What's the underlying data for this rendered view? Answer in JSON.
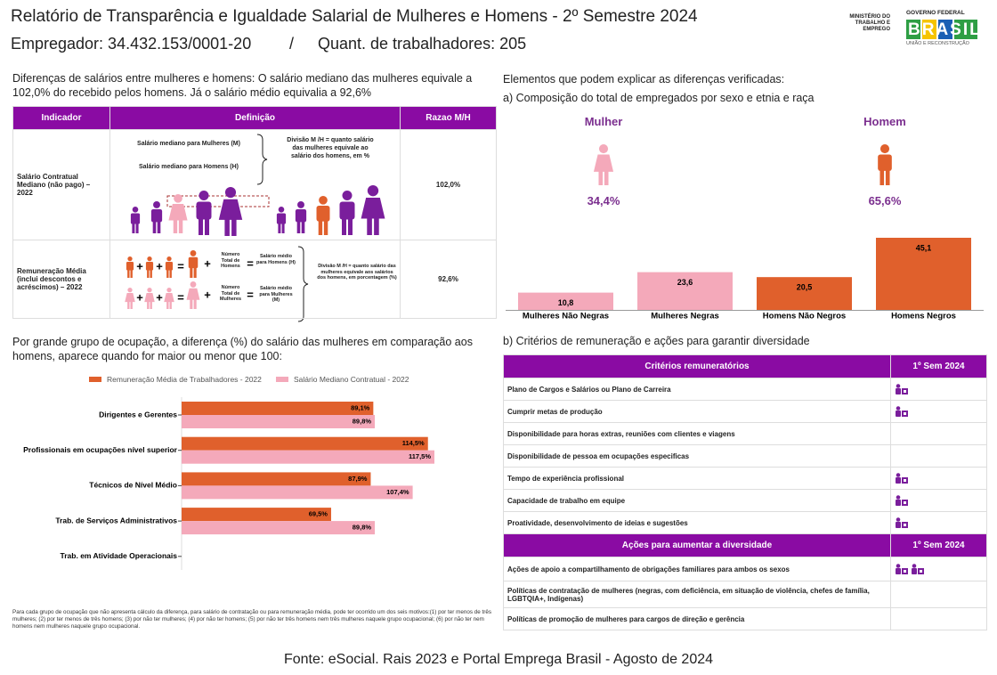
{
  "header": {
    "title": "Relatório de Transparência e Igualdade Salarial de Mulheres e Homens - 2º Semestre 2024",
    "employer": "Empregador: 34.432.153/0001-20",
    "separator": "/",
    "workers": "Quant. de trabalhadores: 205"
  },
  "logos": {
    "ministry": "MINISTÉRIO DO TRABALHO E EMPREGO",
    "government": "GOVERNO FEDERAL",
    "brand": "BRASIL",
    "slogan": "UNIÃO E RECONSTRUÇÃO"
  },
  "intro": "Diferenças de salários entre mulheres e homens: O salário mediano das mulheres equivale a 102,0% do recebido pelos homens. Já o salário médio equivalia a 92,6%",
  "table1": {
    "headers": [
      "Indicador",
      "Definição",
      "Razao M/H"
    ],
    "rows": [
      {
        "indicator": "Salário Contratual Mediano (não pago) – 2022",
        "definition": [
          "Salário mediano para Mulheres (M)",
          "Salário mediano para Homens (H)"
        ],
        "note": "Divisão M /H = quanto salário das mulheres equivale ao salário dos homens, em %",
        "ratio": "102,0%"
      },
      {
        "indicator": "Remuneração Média (inclui descontos e acréscimos) – 2022",
        "definition": [
          "Número Total de Homens",
          "Salário médio para Homens (H)",
          "Número Total de Mulheres",
          "Salário médio para Mulheres (M)"
        ],
        "note": "Divisão M /H = quanto salário das mulheres equivale aos salários dos homens, em porcentagem (%)",
        "ratio": "92,6%"
      }
    ]
  },
  "composition": {
    "heading": "Elementos que podem explicar as diferenças verificadas:",
    "subheading": "a) Composição do total de empregados por sexo e etnia e raça",
    "woman": {
      "label": "Mulher",
      "share": "34,4%"
    },
    "man": {
      "label": "Homem",
      "share": "65,6%"
    }
  },
  "occupation": "Por grande grupo de ocupação, a diferença (%) do salário das mulheres em comparação aos homens, aparece quando for maior ou menor que 100:",
  "chart_data": [
    {
      "type": "bar",
      "categories": [
        "Mulheres Não Negras",
        "Mulheres Negras",
        "Homens Não Negros",
        "Homens Negros"
      ],
      "values": [
        10.8,
        23.6,
        20.5,
        45.1
      ],
      "value_labels": [
        "10,8",
        "23,6",
        "20,5",
        "45,1"
      ],
      "colors": [
        "#f4a9ba",
        "#f4a9ba",
        "#e0602c",
        "#e0602c"
      ]
    },
    {
      "type": "hbar",
      "categories": [
        "Dirigentes e Gerentes",
        "Profissionais em ocupações nível superior",
        "Técnicos de Nível Médio",
        "Trab. de Serviços Administrativos",
        "Trab. em Atividade Operacionais"
      ],
      "series": [
        {
          "name": "Remuneração Média de Trabalhadores - 2022",
          "color": "#e0602c",
          "values": [
            89.1,
            114.5,
            87.9,
            69.5,
            null
          ],
          "value_labels": [
            "89,1%",
            "114,5%",
            "87,9%",
            "69,5%",
            null
          ]
        },
        {
          "name": "Salário Mediano Contratual - 2022",
          "color": "#f4a9ba",
          "values": [
            89.8,
            117.5,
            107.4,
            89.8,
            null
          ],
          "value_labels": [
            "89,8%",
            "117,5%",
            "107,4%",
            "89,8%",
            null
          ]
        }
      ]
    }
  ],
  "footnote": "Para cada grupo de ocupação que não apresenta cálculo da diferença, para salário de contratação ou para remuneração média, pode ter ocorrido um dos seis motivos:(1) por ter menos de três mulheres; (2) por ter menos de três homens; (3) por não ter mulheres; (4) por não ter homens; (5) por não ter três homens nem três mulheres naquele grupo ocupacional; (6) por não ter nem homens nem mulheres naquele grupo ocupacional.",
  "diversity": {
    "heading": "b) Critérios de remuneração e ações para garantir diversidade",
    "criteria": {
      "headers": [
        "Critérios remuneratórios",
        "1º Sem 2024"
      ],
      "rows": [
        {
          "label": "Plano de Cargos e Salários ou Plano de Carreira",
          "icons": 1
        },
        {
          "label": "Cumprir metas de produção",
          "icons": 1
        },
        {
          "label": "Disponibilidade para horas extras, reuniões com clientes e viagens",
          "icons": 0
        },
        {
          "label": "Disponibilidade de pessoa em ocupações especificas",
          "icons": 0
        },
        {
          "label": "Tempo de experiência profissional",
          "icons": 1
        },
        {
          "label": "Capacidade de trabalho em equipe",
          "icons": 1
        },
        {
          "label": "Proatividade, desenvolvimento de ideias e sugestões",
          "icons": 1
        }
      ]
    },
    "actions": {
      "headers": [
        "Ações para aumentar a diversidade",
        "1º Sem 2024"
      ],
      "rows": [
        {
          "label": "Ações de apoio a compartilhamento de obrigações familiares para ambos os sexos",
          "icons": 2
        },
        {
          "label": "Políticas de contratação de mulheres (negras, com deficiência, em situação de violência, chefes de família, LGBTQIA+, Indígenas)",
          "icons": 0
        },
        {
          "label": "Políticas de promoção de mulheres para cargos de direção e gerência",
          "icons": 0
        }
      ]
    }
  },
  "footer": "Fonte: eSocial. Rais 2023 e Portal Emprega Brasil - Agosto de 2024"
}
